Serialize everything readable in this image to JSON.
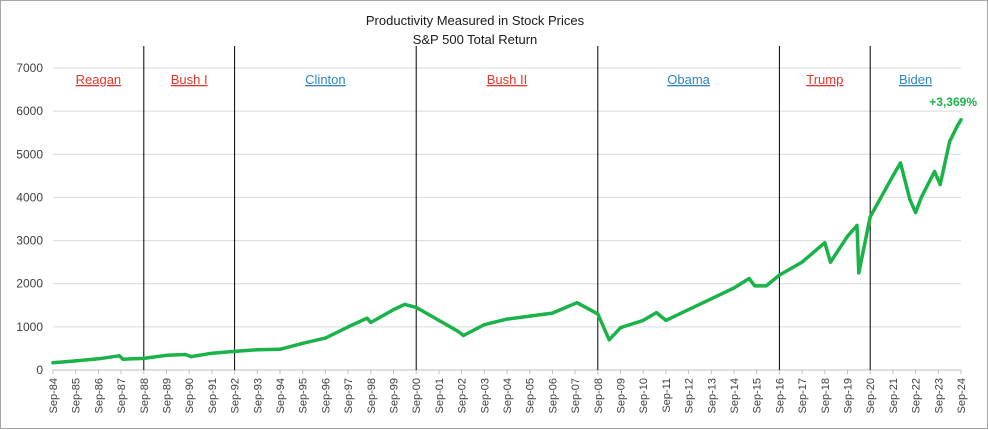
{
  "chart_data": {
    "type": "line",
    "title": "Productivity Measured in Stock Prices",
    "subtitle": "S&P 500 Total Return",
    "ylim": [
      0,
      7000
    ],
    "yticks": [
      0,
      1000,
      2000,
      3000,
      4000,
      5000,
      6000,
      7000
    ],
    "xlim": [
      "1984-09",
      "2024-09"
    ],
    "xticks": [
      "Sep-84",
      "Sep-85",
      "Sep-86",
      "Sep-87",
      "Sep-88",
      "Sep-89",
      "Sep-90",
      "Sep-91",
      "Sep-92",
      "Sep-93",
      "Sep-94",
      "Sep-95",
      "Sep-96",
      "Sep-97",
      "Sep-98",
      "Sep-99",
      "Sep-00",
      "Sep-01",
      "Sep-02",
      "Sep-03",
      "Sep-04",
      "Sep-05",
      "Sep-06",
      "Sep-07",
      "Sep-08",
      "Sep-09",
      "Sep-10",
      "Sep-11",
      "Sep-12",
      "Sep-13",
      "Sep-14",
      "Sep-15",
      "Sep-16",
      "Sep-17",
      "Sep-18",
      "Sep-19",
      "Sep-20",
      "Sep-21",
      "Sep-22",
      "Sep-23",
      "Sep-24"
    ],
    "grid": "horizontal",
    "line_color": "#1ab34a",
    "series": [
      {
        "x": [
          "1984-09",
          "1985-09",
          "1986-09",
          "1987-08",
          "1987-10",
          "1988-09",
          "1989-09",
          "1990-07",
          "1990-10",
          "1991-09",
          "1992-09",
          "1993-09",
          "1994-09",
          "1995-09",
          "1996-09",
          "1997-09",
          "1998-07",
          "1998-09",
          "1999-09",
          "2000-03",
          "2000-09",
          "2001-09",
          "2002-07",
          "2002-10",
          "2003-09",
          "2004-09",
          "2005-09",
          "2006-09",
          "2007-10",
          "2008-09",
          "2009-03",
          "2009-09",
          "2010-09",
          "2011-04",
          "2011-09",
          "2012-09",
          "2013-09",
          "2014-09",
          "2015-05",
          "2015-08",
          "2016-02",
          "2016-09",
          "2017-09",
          "2018-09",
          "2018-12",
          "2019-09",
          "2020-02",
          "2020-03",
          "2020-09",
          "2021-09",
          "2022-01",
          "2022-06",
          "2022-09",
          "2022-12",
          "2023-07",
          "2023-10",
          "2024-03",
          "2024-07",
          "2024-09"
        ],
        "values": [
          170,
          210,
          260,
          330,
          250,
          270,
          340,
          360,
          310,
          390,
          430,
          470,
          480,
          620,
          740,
          1000,
          1200,
          1100,
          1400,
          1520,
          1450,
          1150,
          900,
          800,
          1050,
          1180,
          1250,
          1320,
          1560,
          1300,
          700,
          980,
          1150,
          1330,
          1150,
          1400,
          1650,
          1900,
          2120,
          1950,
          1950,
          2200,
          2500,
          2950,
          2500,
          3100,
          3350,
          2250,
          3550,
          4500,
          4800,
          3950,
          3650,
          4000,
          4600,
          4300,
          5300,
          5650,
          5800
        ]
      }
    ],
    "eras": [
      {
        "label": "Reagan",
        "color": "#e8352b",
        "start": "1984-09",
        "end": "1988-09"
      },
      {
        "label": "Bush I",
        "color": "#e8352b",
        "start": "1988-09",
        "end": "1992-09"
      },
      {
        "label": "Clinton",
        "color": "#2e86c1",
        "start": "1992-09",
        "end": "2000-09"
      },
      {
        "label": "Bush II",
        "color": "#e8352b",
        "start": "2000-09",
        "end": "2008-09"
      },
      {
        "label": "Obama",
        "color": "#2e86c1",
        "start": "2008-09",
        "end": "2016-09"
      },
      {
        "label": "Trump",
        "color": "#e8352b",
        "start": "2016-09",
        "end": "2020-09"
      },
      {
        "label": "Biden",
        "color": "#2e86c1",
        "start": "2020-09",
        "end": "2024-09"
      }
    ],
    "dividers": [
      "1988-09",
      "1992-09",
      "2000-09",
      "2008-09",
      "2016-09",
      "2020-09"
    ],
    "annotation": {
      "text": "+3,369%",
      "color": "#1ab34a"
    }
  }
}
